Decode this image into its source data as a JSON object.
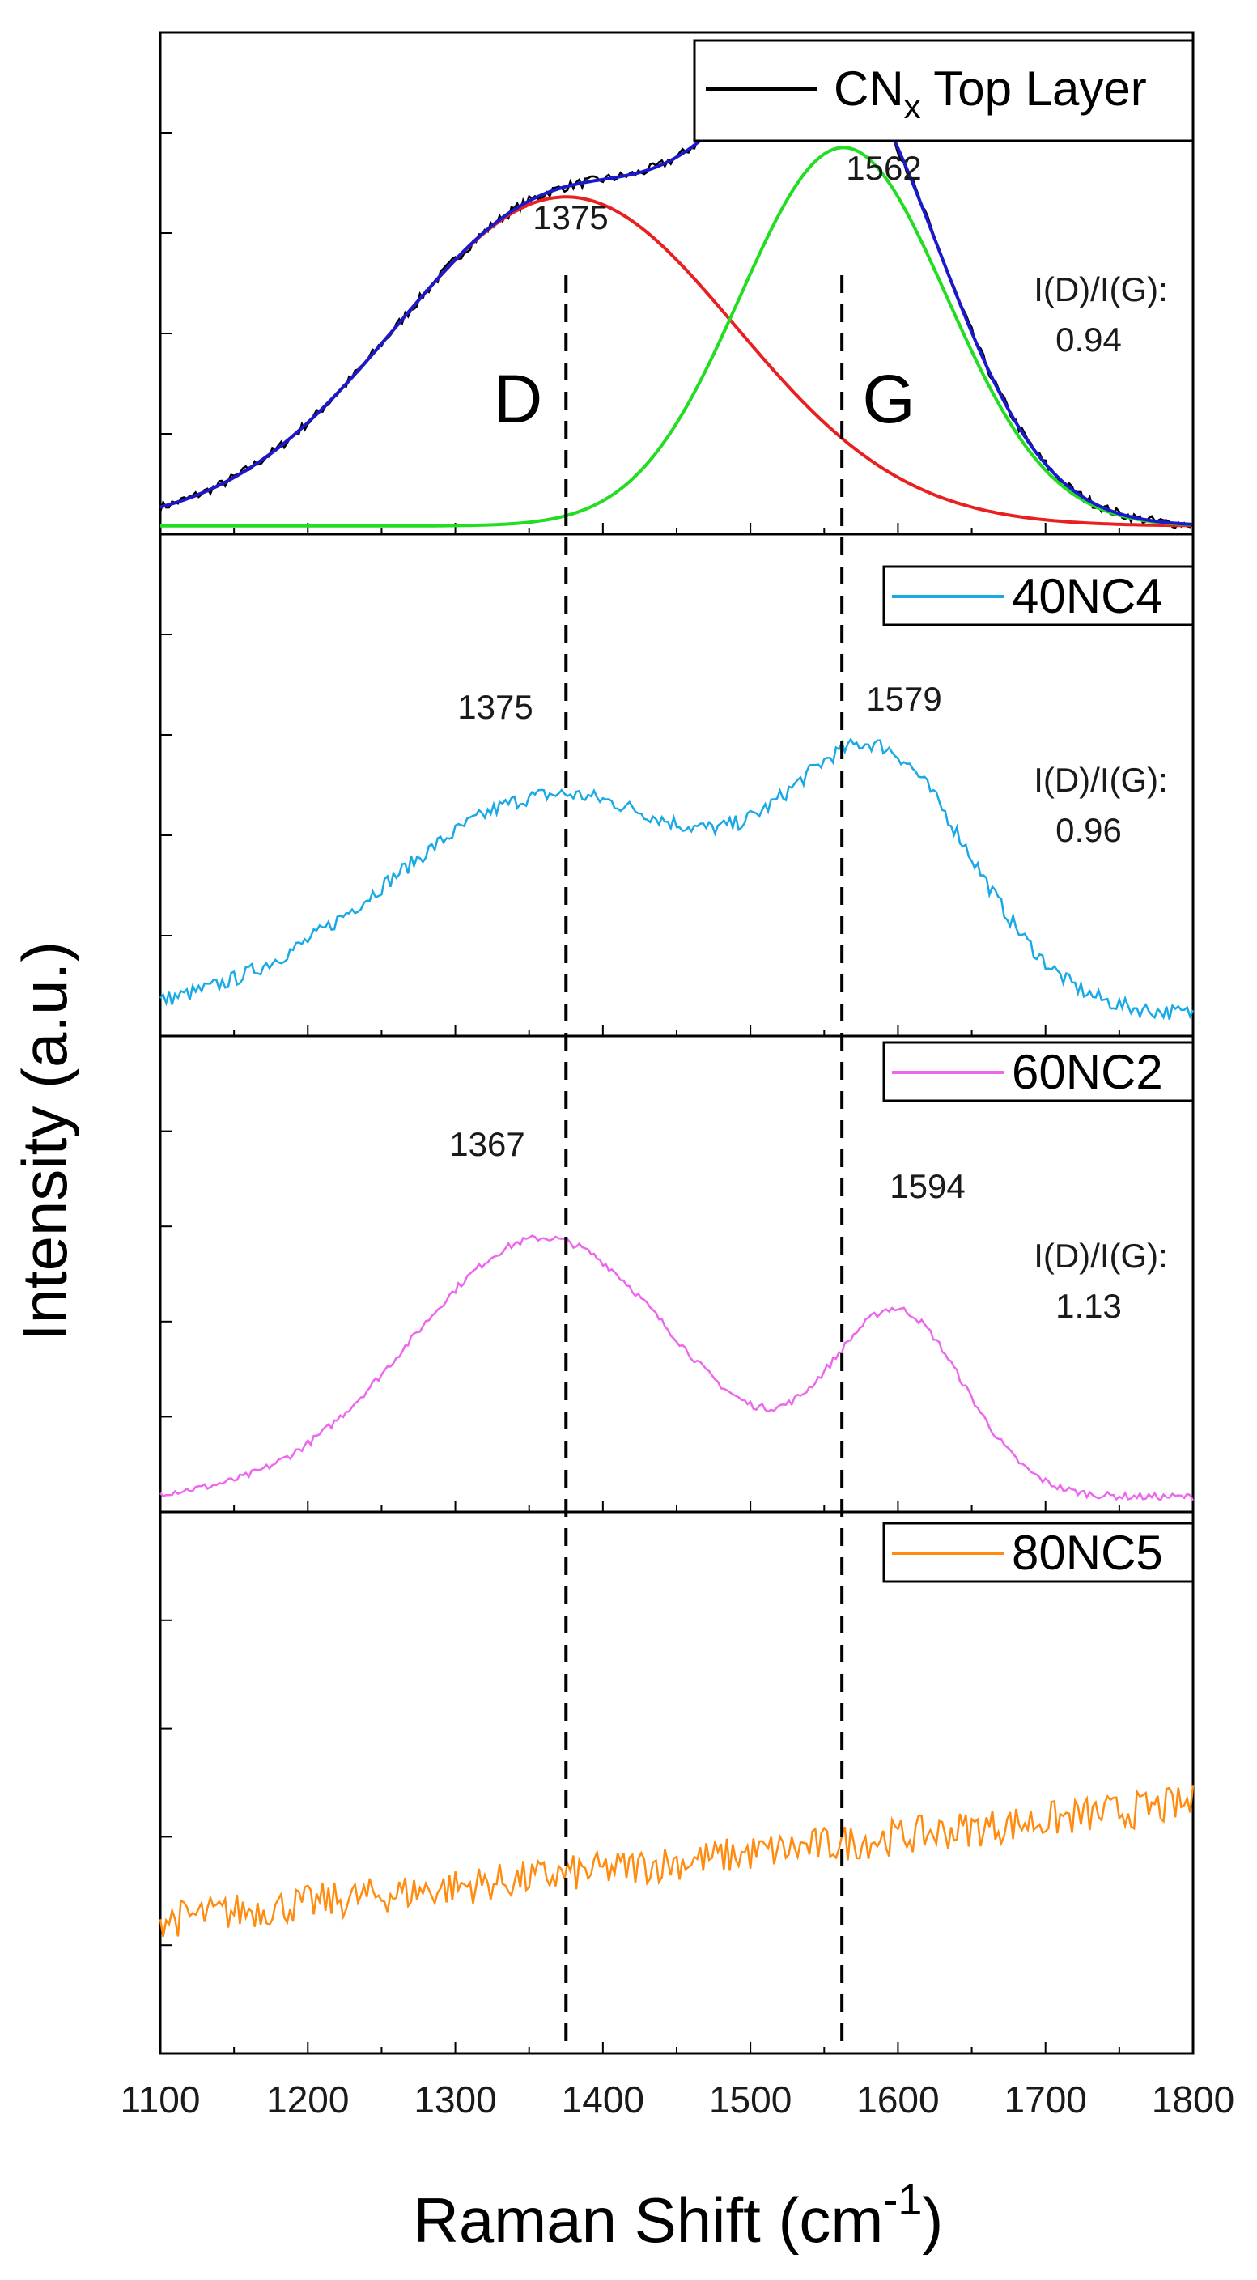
{
  "chart_data": {
    "type": "line",
    "xlabel": "Raman Shift (cm",
    "xlabel_sup": "-1",
    "xlabel_end": ")",
    "ylabel": "Intensity (a.u.)",
    "xlim": [
      1100,
      1800
    ],
    "x_ticks": [
      1100,
      1200,
      1300,
      1400,
      1500,
      1600,
      1700,
      1800
    ],
    "dashed_lines_x": [
      1375,
      1562
    ],
    "panels": [
      {
        "legend": "CN",
        "legend_sub": "x",
        "legend_rest": " Top Layer",
        "color": "#000000",
        "peaks": [
          {
            "label": "1375",
            "x": 1375
          },
          {
            "label": "1562",
            "x": 1562
          }
        ],
        "ratio_label": "I(D)/I(G):",
        "ratio_value": "0.94",
        "band_labels": [
          "D",
          "G"
        ],
        "fits": [
          {
            "name": "D band",
            "color": "#e82020",
            "center": 1375,
            "amplitude": 0.8,
            "width": 115
          },
          {
            "name": "G band",
            "color": "#22dd22",
            "center": 1563,
            "amplitude": 0.92,
            "width": 70
          },
          {
            "name": "Cumulative fit",
            "color": "#1a1acc"
          }
        ]
      },
      {
        "legend": "40NC4",
        "color": "#19a9e6",
        "peaks": [
          {
            "label": "1375",
            "x": 1375
          },
          {
            "label": "1579",
            "x": 1579
          }
        ],
        "ratio_label": "I(D)/I(G):",
        "ratio_value": "0.96"
      },
      {
        "legend": "60NC2",
        "color": "#ee66ee",
        "peaks": [
          {
            "label": "1367",
            "x": 1367
          },
          {
            "label": "1594",
            "x": 1594
          }
        ],
        "ratio_label": "I(D)/I(G):",
        "ratio_value": "1.13"
      },
      {
        "legend": "80NC5",
        "color": "#ff8c10"
      }
    ]
  }
}
